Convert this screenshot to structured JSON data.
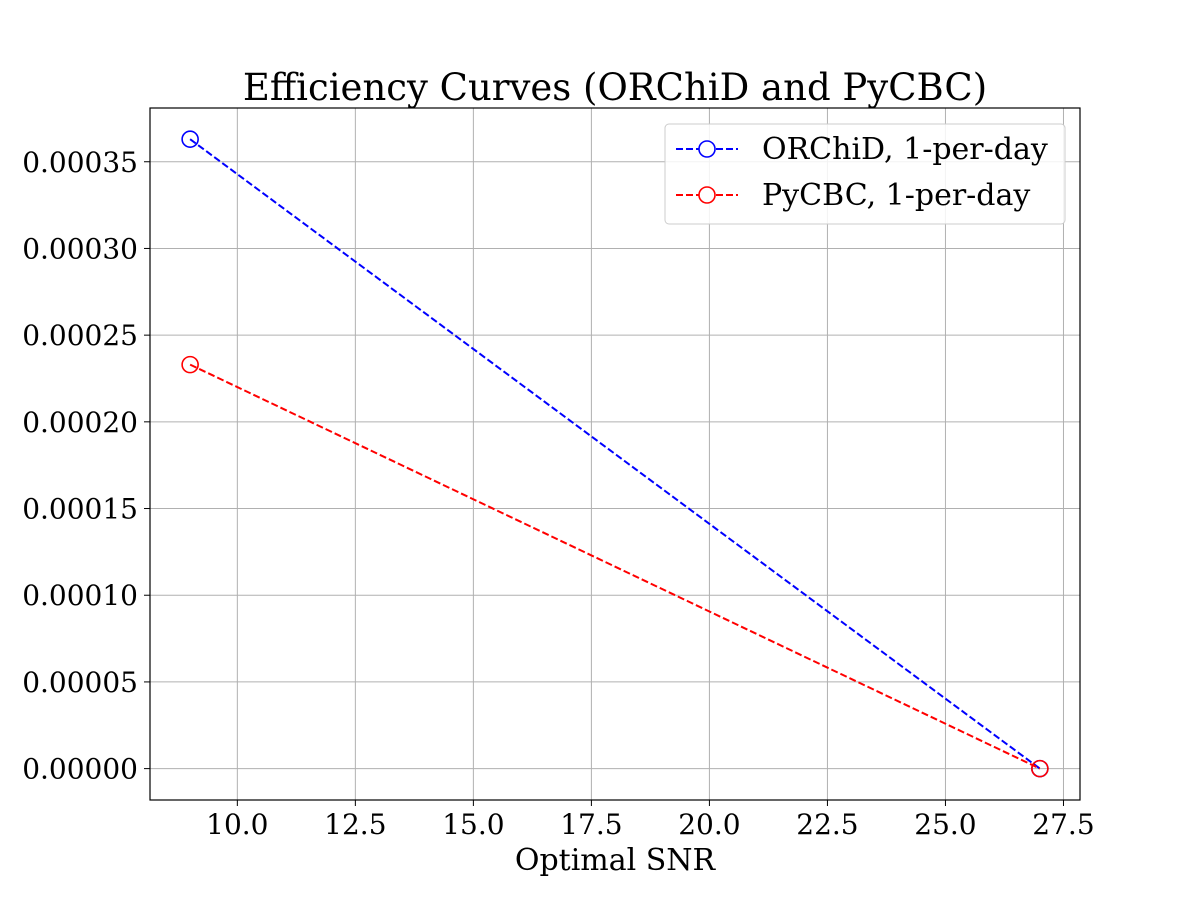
{
  "chart_data": {
    "type": "line",
    "title": "Efficiency Curves (ORChiD and PyCBC)",
    "xlabel": "Optimal SNR",
    "ylabel": "",
    "xlim": [
      8.15,
      27.85
    ],
    "ylim": [
      -1.81e-05,
      0.000381
    ],
    "xticks": [
      10.0,
      12.5,
      15.0,
      17.5,
      20.0,
      22.5,
      25.0,
      27.5
    ],
    "xtick_labels": [
      "10.0",
      "12.5",
      "15.0",
      "17.5",
      "20.0",
      "22.5",
      "25.0",
      "27.5"
    ],
    "yticks": [
      0.0,
      5e-05,
      0.0001,
      0.00015,
      0.0002,
      0.00025,
      0.0003,
      0.00035
    ],
    "ytick_labels": [
      "0.00000",
      "0.00005",
      "0.00010",
      "0.00015",
      "0.00020",
      "0.00025",
      "0.00030",
      "0.00035"
    ],
    "grid": true,
    "legend_position": "top-right",
    "series": [
      {
        "name": "ORChiD, 1-per-day",
        "color": "#0000ff",
        "line_style": "dashed",
        "marker": "open-circle",
        "x": [
          9,
          27
        ],
        "y": [
          0.000363,
          0.0
        ]
      },
      {
        "name": "PyCBC, 1-per-day",
        "color": "#ff0000",
        "line_style": "dashed",
        "marker": "open-circle",
        "x": [
          9,
          27
        ],
        "y": [
          0.000233,
          0.0
        ]
      }
    ]
  }
}
